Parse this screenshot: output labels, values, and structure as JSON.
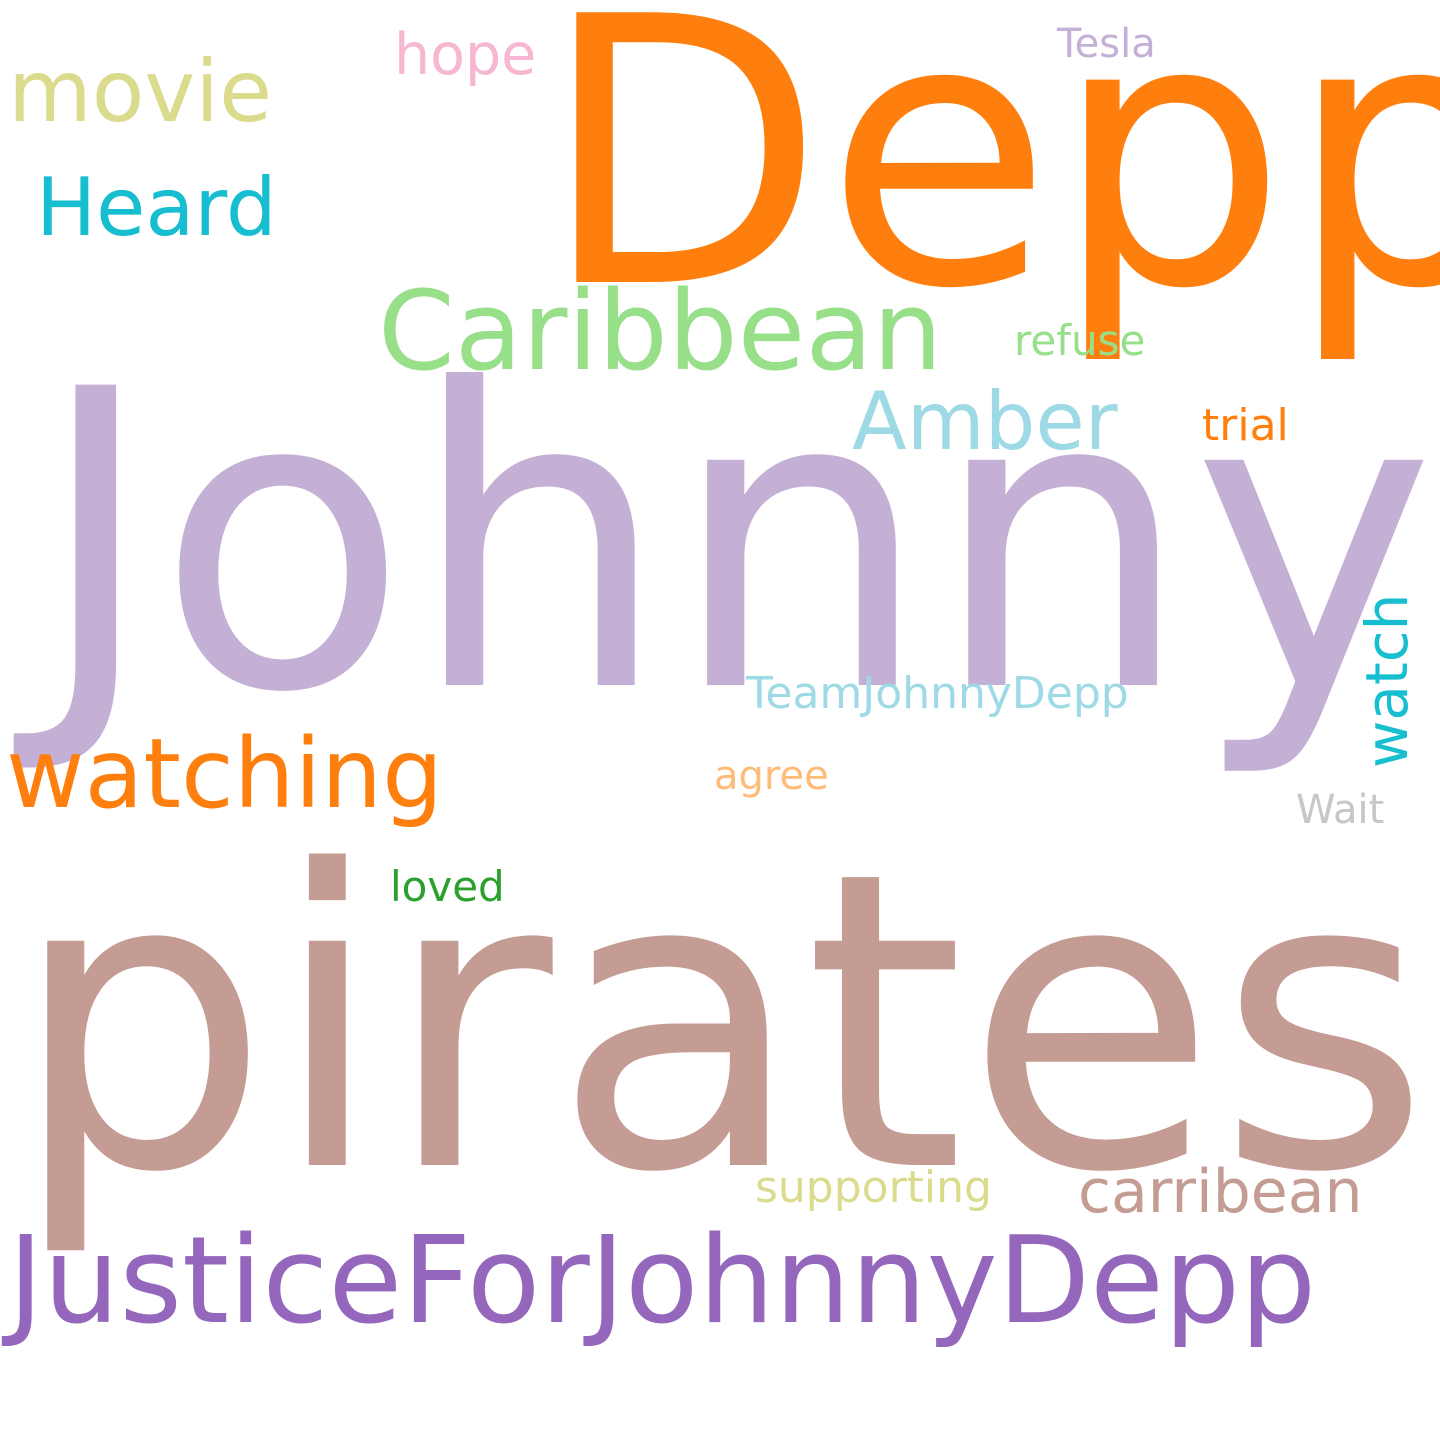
{
  "word_cloud": {
    "words": [
      {
        "text": "Johnny",
        "color": "#c5b0d5"
      },
      {
        "text": "pirates",
        "color": "#c49c94"
      },
      {
        "text": "Depp",
        "color": "#ff7f0e"
      },
      {
        "text": "JusticeForJohnnyDepp",
        "color": "#9467bd"
      },
      {
        "text": "Caribbean",
        "color": "#98df8a"
      },
      {
        "text": "watching",
        "color": "#ff7f0e"
      },
      {
        "text": "Amber",
        "color": "#9edae5"
      },
      {
        "text": "Heard",
        "color": "#17becf"
      },
      {
        "text": "movie",
        "color": "#dbdb8d"
      },
      {
        "text": "carribean",
        "color": "#c49c94"
      },
      {
        "text": "watch",
        "color": "#17becf"
      },
      {
        "text": "hope",
        "color": "#f7b6d2"
      },
      {
        "text": "TeamJohnnyDepp",
        "color": "#9edae5"
      },
      {
        "text": "supporting",
        "color": "#dbdb8d"
      },
      {
        "text": "trial",
        "color": "#ff7f0e"
      },
      {
        "text": "refuse",
        "color": "#98df8a"
      },
      {
        "text": "loved",
        "color": "#2ca02c"
      },
      {
        "text": "Tesla",
        "color": "#c5b0d5"
      },
      {
        "text": "agree",
        "color": "#ffbb78"
      },
      {
        "text": "Wait",
        "color": "#c7c7c7"
      }
    ]
  }
}
